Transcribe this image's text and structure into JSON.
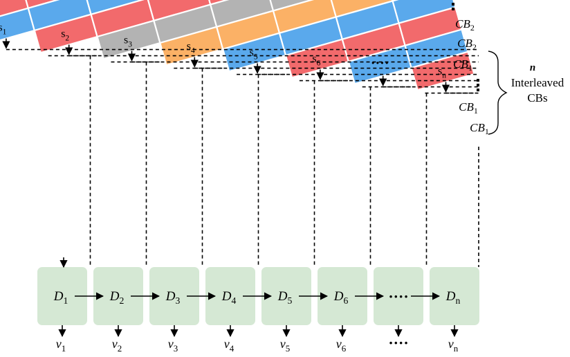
{
  "colors": {
    "blue": "#5aa9ec",
    "red": "#f26a6c",
    "gray": "#b3b3b3",
    "orange": "#fbb166",
    "process_fill": "#d5e8d4",
    "cb2_label": "#4d9fe8",
    "cb1_red_label": "#e83232",
    "cb1_blue_label": "#4d9fe8",
    "cb1_black_label": "#000000"
  },
  "band_labels": [
    {
      "text": "CB",
      "sub": "2",
      "color": "blue"
    },
    {
      "text": "CB",
      "sub": "2",
      "color": "red"
    },
    {
      "text": "CB",
      "sub": "1",
      "color": "black"
    },
    {
      "text": "CB",
      "sub": "1",
      "color": "blue"
    },
    {
      "text": "CB",
      "sub": "1",
      "color": "red"
    }
  ],
  "brace_label": {
    "n": "n",
    "line1": "Interleaved",
    "line2": "CBs"
  },
  "segments": [
    {
      "s": "s",
      "sub": "1"
    },
    {
      "s": "s",
      "sub": "2"
    },
    {
      "s": "s",
      "sub": "3"
    },
    {
      "s": "s",
      "sub": "4"
    },
    {
      "s": "s",
      "sub": "5"
    },
    {
      "s": "s",
      "sub": "6"
    },
    {
      "s": "····",
      "sub": ""
    },
    {
      "s": "s",
      "sub": "n"
    }
  ],
  "decoders": [
    {
      "d": "D",
      "sub": "1"
    },
    {
      "d": "D",
      "sub": "2"
    },
    {
      "d": "D",
      "sub": "3"
    },
    {
      "d": "D",
      "sub": "4"
    },
    {
      "d": "D",
      "sub": "5"
    },
    {
      "d": "D",
      "sub": "6"
    },
    {
      "d": "····",
      "sub": ""
    },
    {
      "d": "D",
      "sub": "n"
    }
  ],
  "outputs": [
    {
      "v": "v",
      "sub": "1"
    },
    {
      "v": "v",
      "sub": "2"
    },
    {
      "v": "v",
      "sub": "3"
    },
    {
      "v": "v",
      "sub": "4"
    },
    {
      "v": "v",
      "sub": "5"
    },
    {
      "v": "v",
      "sub": "6"
    },
    {
      "v": "····",
      "sub": ""
    },
    {
      "v": "v",
      "sub": "n"
    }
  ]
}
